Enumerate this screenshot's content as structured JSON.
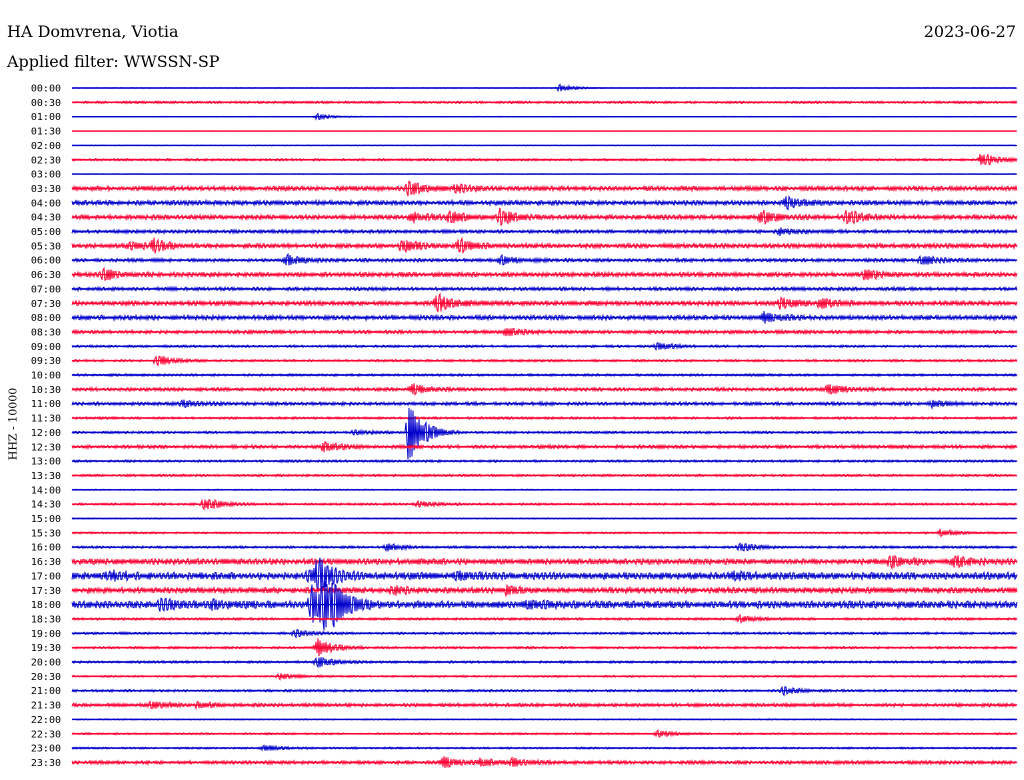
{
  "header": {
    "station": "HA Domvrena, Viotia",
    "date": "2023-06-27",
    "filter": "Applied filter: WWSSN-SP"
  },
  "colors": {
    "odd_trace": "#0000cc",
    "even_trace": "#ff0033"
  },
  "chart_data": {
    "type": "line",
    "kind": "helicorder",
    "ylabel": "HHZ - 10000",
    "row_labels": [
      "00:00",
      "00:30",
      "01:00",
      "01:30",
      "02:00",
      "02:30",
      "03:00",
      "03:30",
      "04:00",
      "04:30",
      "05:00",
      "05:30",
      "06:00",
      "06:30",
      "07:00",
      "07:30",
      "08:00",
      "08:30",
      "09:00",
      "09:30",
      "10:00",
      "10:30",
      "11:00",
      "11:30",
      "12:00",
      "12:30",
      "13:00",
      "13:30",
      "14:00",
      "14:30",
      "15:00",
      "15:30",
      "16:00",
      "16:30",
      "17:00",
      "17:30",
      "18:00",
      "18:30",
      "19:00",
      "19:30",
      "20:00",
      "20:30",
      "21:00",
      "21:30",
      "22:00",
      "22:30",
      "23:00",
      "23:30"
    ],
    "row_minutes": 30,
    "color_cycle": [
      "blue",
      "red"
    ],
    "noise_level": [
      0.3,
      1,
      0.3,
      0.2,
      0.3,
      1,
      0.3,
      2,
      2,
      2,
      1.5,
      2,
      1.5,
      2,
      1.5,
      2,
      2,
      1.5,
      1,
      1,
      1,
      1.5,
      1.5,
      1,
      1,
      1.5,
      1,
      1,
      0.5,
      1,
      0.5,
      0.8,
      1,
      2.5,
      3,
      2.5,
      3,
      1,
      1,
      1,
      1,
      0.8,
      1,
      1.5,
      0.5,
      0.8,
      0.8,
      1.5
    ],
    "events": [
      {
        "row": 0,
        "minute": 15.5,
        "amplitude": 4
      },
      {
        "row": 2,
        "minute": 7.8,
        "amplitude": 3
      },
      {
        "row": 5,
        "minute": 28.9,
        "amplitude": 7
      },
      {
        "row": 7,
        "minute": 10.7,
        "amplitude": 7
      },
      {
        "row": 7,
        "minute": 12.2,
        "amplitude": 4
      },
      {
        "row": 8,
        "minute": 22.7,
        "amplitude": 6
      },
      {
        "row": 9,
        "minute": 10.8,
        "amplitude": 5
      },
      {
        "row": 9,
        "minute": 12.0,
        "amplitude": 6
      },
      {
        "row": 9,
        "minute": 13.6,
        "amplitude": 8
      },
      {
        "row": 9,
        "minute": 21.9,
        "amplitude": 6
      },
      {
        "row": 9,
        "minute": 24.6,
        "amplitude": 7
      },
      {
        "row": 10,
        "minute": 22.5,
        "amplitude": 3
      },
      {
        "row": 11,
        "minute": 1.8,
        "amplitude": 4
      },
      {
        "row": 11,
        "minute": 2.6,
        "amplitude": 6
      },
      {
        "row": 11,
        "minute": 10.5,
        "amplitude": 7
      },
      {
        "row": 11,
        "minute": 12.3,
        "amplitude": 7
      },
      {
        "row": 12,
        "minute": 6.8,
        "amplitude": 5
      },
      {
        "row": 12,
        "minute": 13.6,
        "amplitude": 4
      },
      {
        "row": 12,
        "minute": 27.0,
        "amplitude": 5
      },
      {
        "row": 13,
        "minute": 1.0,
        "amplitude": 6
      },
      {
        "row": 13,
        "minute": 25.2,
        "amplitude": 5
      },
      {
        "row": 15,
        "minute": 11.6,
        "amplitude": 9
      },
      {
        "row": 15,
        "minute": 22.5,
        "amplitude": 7
      },
      {
        "row": 15,
        "minute": 23.8,
        "amplitude": 5
      },
      {
        "row": 16,
        "minute": 22.0,
        "amplitude": 5
      },
      {
        "row": 17,
        "minute": 13.8,
        "amplitude": 5
      },
      {
        "row": 18,
        "minute": 18.6,
        "amplitude": 4
      },
      {
        "row": 19,
        "minute": 2.7,
        "amplitude": 6
      },
      {
        "row": 21,
        "minute": 10.8,
        "amplitude": 6
      },
      {
        "row": 21,
        "minute": 24.0,
        "amplitude": 6
      },
      {
        "row": 22,
        "minute": 3.5,
        "amplitude": 4
      },
      {
        "row": 22,
        "minute": 27.3,
        "amplitude": 3
      },
      {
        "row": 24,
        "minute": 9.0,
        "amplitude": 3
      },
      {
        "row": 24,
        "minute": 10.7,
        "amplitude": 32
      },
      {
        "row": 25,
        "minute": 8.0,
        "amplitude": 5
      },
      {
        "row": 29,
        "minute": 4.2,
        "amplitude": 7
      },
      {
        "row": 29,
        "minute": 11.0,
        "amplitude": 3
      },
      {
        "row": 31,
        "minute": 27.6,
        "amplitude": 4
      },
      {
        "row": 32,
        "minute": 10.0,
        "amplitude": 4
      },
      {
        "row": 32,
        "minute": 21.2,
        "amplitude": 5
      },
      {
        "row": 33,
        "minute": 26.0,
        "amplitude": 6
      },
      {
        "row": 33,
        "minute": 28.0,
        "amplitude": 6
      },
      {
        "row": 34,
        "minute": 1.2,
        "amplitude": 5
      },
      {
        "row": 34,
        "minute": 7.5,
        "amplitude": 4
      },
      {
        "row": 34,
        "minute": 7.8,
        "amplitude": 18
      },
      {
        "row": 34,
        "minute": 12.2,
        "amplitude": 4
      },
      {
        "row": 34,
        "minute": 21.0,
        "amplitude": 4
      },
      {
        "row": 35,
        "minute": 10.2,
        "amplitude": 4
      },
      {
        "row": 35,
        "minute": 13.8,
        "amplitude": 4
      },
      {
        "row": 36,
        "minute": 2.8,
        "amplitude": 6
      },
      {
        "row": 36,
        "minute": 4.5,
        "amplitude": 5
      },
      {
        "row": 36,
        "minute": 7.6,
        "amplitude": 22
      },
      {
        "row": 36,
        "minute": 8.0,
        "amplitude": 16
      },
      {
        "row": 36,
        "minute": 8.3,
        "amplitude": 14
      },
      {
        "row": 36,
        "minute": 14.5,
        "amplitude": 4
      },
      {
        "row": 37,
        "minute": 21.2,
        "amplitude": 4
      },
      {
        "row": 38,
        "minute": 7.1,
        "amplitude": 4
      },
      {
        "row": 39,
        "minute": 7.8,
        "amplitude": 10
      },
      {
        "row": 40,
        "minute": 7.8,
        "amplitude": 6
      },
      {
        "row": 41,
        "minute": 6.6,
        "amplitude": 3
      },
      {
        "row": 42,
        "minute": 22.6,
        "amplitude": 4
      },
      {
        "row": 43,
        "minute": 2.5,
        "amplitude": 4
      },
      {
        "row": 43,
        "minute": 4.0,
        "amplitude": 3
      },
      {
        "row": 45,
        "minute": 18.6,
        "amplitude": 4
      },
      {
        "row": 46,
        "minute": 6.1,
        "amplitude": 3
      },
      {
        "row": 47,
        "minute": 11.8,
        "amplitude": 6
      },
      {
        "row": 47,
        "minute": 13.0,
        "amplitude": 4
      },
      {
        "row": 47,
        "minute": 14.0,
        "amplitude": 4
      }
    ]
  }
}
